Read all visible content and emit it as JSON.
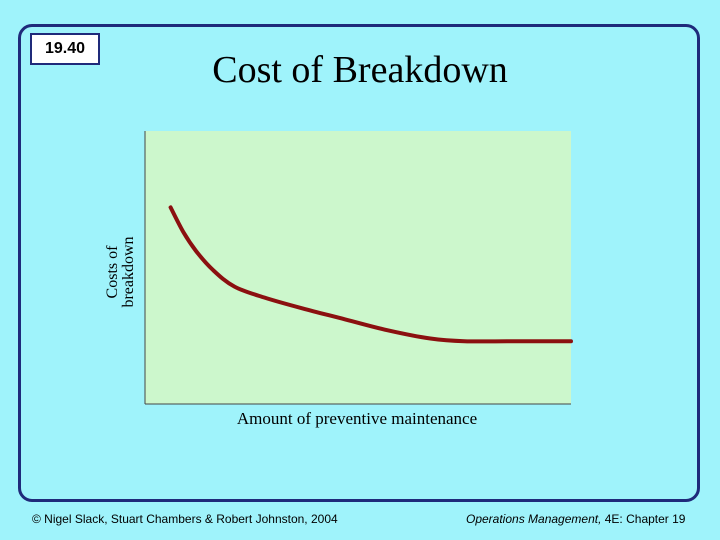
{
  "slide": {
    "number": "19.40",
    "title": "Cost of Breakdown"
  },
  "footer": {
    "left": "© Nigel Slack, Stuart Chambers & Robert Johnston, 2004",
    "right_italic": "Operations Management,",
    "right_rest": " 4E: Chapter 19"
  },
  "colors": {
    "background": "#9ff3fb",
    "plot_area": "#ccf7cc",
    "curve": "#8b1010",
    "frame": "#1f2a7a"
  },
  "chart_data": {
    "type": "line",
    "title": "",
    "xlabel": "Amount of preventive maintenance",
    "ylabel_lines": [
      "Costs of",
      "breakdown"
    ],
    "xlim": [
      0,
      100
    ],
    "ylim": [
      0,
      100
    ],
    "grid": false,
    "series": [
      {
        "x": [
          6,
          9,
          12,
          16,
          21,
          28,
          37,
          47,
          57,
          67,
          75,
          85,
          100
        ],
        "y": [
          72,
          63,
          56,
          49,
          43,
          39,
          35,
          31,
          27,
          24,
          23,
          23,
          23
        ]
      }
    ]
  }
}
